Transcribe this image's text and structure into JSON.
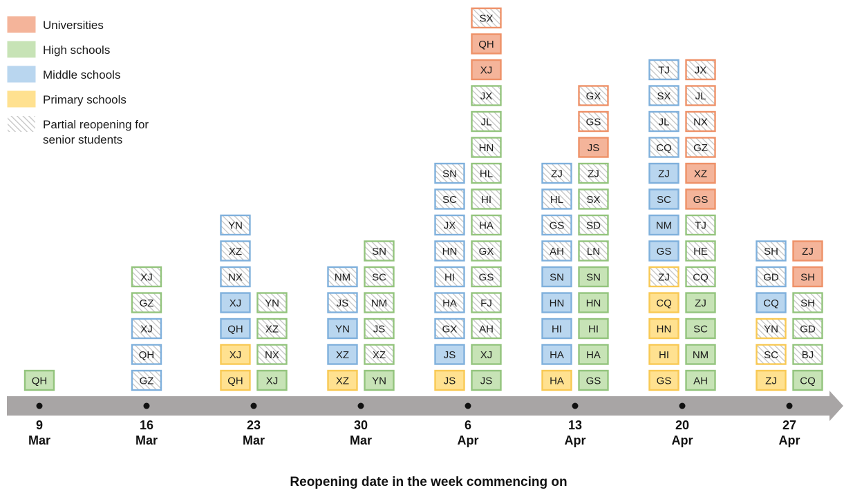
{
  "chart_data": {
    "type": "stacked-blocks",
    "xlabel": "Reopening date in the week commencing on",
    "colors": {
      "U": {
        "fill": "#f4b49a",
        "stroke": "#ee9168"
      },
      "H": {
        "fill": "#c7e3b6",
        "stroke": "#93c47d"
      },
      "M": {
        "fill": "#b9d6ef",
        "stroke": "#7fb0dc"
      },
      "P": {
        "fill": "#ffe190",
        "stroke": "#f8c954"
      },
      "partial": {
        "fill": "#ffffff",
        "stroke": "#bdbdbd",
        "hatch": "#c4c4c4"
      },
      "axis": "#a8a5a5"
    },
    "legend": [
      {
        "key": "U",
        "label": "Universities"
      },
      {
        "key": "H",
        "label": "High schools"
      },
      {
        "key": "M",
        "label": "Middle schools"
      },
      {
        "key": "P",
        "label": "Primary schools"
      },
      {
        "key": "partial",
        "label1": "Partial reopening for",
        "label2": "senior students"
      }
    ],
    "weeks": [
      {
        "day": "9",
        "month": "Mar",
        "columns": [
          [
            {
              "code": "QH",
              "type": "H",
              "partial": false
            }
          ]
        ]
      },
      {
        "day": "16",
        "month": "Mar",
        "columns": [
          [
            {
              "code": "GZ",
              "type": "M",
              "partial": true
            },
            {
              "code": "QH",
              "type": "M",
              "partial": true
            },
            {
              "code": "XJ",
              "type": "M",
              "partial": true
            },
            {
              "code": "GZ",
              "type": "H",
              "partial": true
            },
            {
              "code": "XJ",
              "type": "H",
              "partial": true
            }
          ]
        ]
      },
      {
        "day": "23",
        "month": "Mar",
        "columns": [
          [
            {
              "code": "QH",
              "type": "P",
              "partial": false
            },
            {
              "code": "XJ",
              "type": "P",
              "partial": false
            },
            {
              "code": "QH",
              "type": "M",
              "partial": false
            },
            {
              "code": "XJ",
              "type": "M",
              "partial": false
            },
            {
              "code": "NX",
              "type": "M",
              "partial": true
            },
            {
              "code": "XZ",
              "type": "M",
              "partial": true
            },
            {
              "code": "YN",
              "type": "M",
              "partial": true
            }
          ],
          [
            {
              "code": "XJ",
              "type": "H",
              "partial": false
            },
            {
              "code": "NX",
              "type": "H",
              "partial": true
            },
            {
              "code": "XZ",
              "type": "H",
              "partial": true
            },
            {
              "code": "YN",
              "type": "H",
              "partial": true
            }
          ]
        ]
      },
      {
        "day": "30",
        "month": "Mar",
        "columns": [
          [
            {
              "code": "XZ",
              "type": "P",
              "partial": false
            },
            {
              "code": "XZ",
              "type": "M",
              "partial": false
            },
            {
              "code": "YN",
              "type": "M",
              "partial": false
            },
            {
              "code": "JS",
              "type": "M",
              "partial": true
            },
            {
              "code": "NM",
              "type": "M",
              "partial": true
            }
          ],
          [
            {
              "code": "YN",
              "type": "H",
              "partial": false
            },
            {
              "code": "XZ",
              "type": "H",
              "partial": true
            },
            {
              "code": "JS",
              "type": "H",
              "partial": true
            },
            {
              "code": "NM",
              "type": "H",
              "partial": true
            },
            {
              "code": "SC",
              "type": "H",
              "partial": true
            },
            {
              "code": "SN",
              "type": "H",
              "partial": true
            }
          ]
        ]
      },
      {
        "day": "6",
        "month": "Apr",
        "columns": [
          [
            {
              "code": "JS",
              "type": "P",
              "partial": false
            },
            {
              "code": "JS",
              "type": "M",
              "partial": false
            },
            {
              "code": "GX",
              "type": "M",
              "partial": true
            },
            {
              "code": "HA",
              "type": "M",
              "partial": true
            },
            {
              "code": "HI",
              "type": "M",
              "partial": true
            },
            {
              "code": "HN",
              "type": "M",
              "partial": true
            },
            {
              "code": "JX",
              "type": "M",
              "partial": true
            },
            {
              "code": "SC",
              "type": "M",
              "partial": true
            },
            {
              "code": "SN",
              "type": "M",
              "partial": true
            }
          ],
          [
            {
              "code": "JS",
              "type": "H",
              "partial": false
            },
            {
              "code": "XJ",
              "type": "H",
              "partial": false
            },
            {
              "code": "AH",
              "type": "H",
              "partial": true
            },
            {
              "code": "FJ",
              "type": "H",
              "partial": true
            },
            {
              "code": "GS",
              "type": "H",
              "partial": true
            },
            {
              "code": "GX",
              "type": "H",
              "partial": true
            },
            {
              "code": "HA",
              "type": "H",
              "partial": true
            },
            {
              "code": "HI",
              "type": "H",
              "partial": true
            },
            {
              "code": "HL",
              "type": "H",
              "partial": true
            },
            {
              "code": "HN",
              "type": "H",
              "partial": true
            },
            {
              "code": "JL",
              "type": "H",
              "partial": true
            },
            {
              "code": "JX",
              "type": "H",
              "partial": true
            },
            {
              "code": "XJ",
              "type": "U",
              "partial": false
            },
            {
              "code": "QH",
              "type": "U",
              "partial": false
            },
            {
              "code": "SX",
              "type": "U",
              "partial": true
            }
          ]
        ]
      },
      {
        "day": "13",
        "month": "Apr",
        "columns": [
          [
            {
              "code": "HA",
              "type": "P",
              "partial": false
            },
            {
              "code": "HA",
              "type": "M",
              "partial": false
            },
            {
              "code": "HI",
              "type": "M",
              "partial": false
            },
            {
              "code": "HN",
              "type": "M",
              "partial": false
            },
            {
              "code": "SN",
              "type": "M",
              "partial": false
            },
            {
              "code": "AH",
              "type": "M",
              "partial": true
            },
            {
              "code": "GS",
              "type": "M",
              "partial": true
            },
            {
              "code": "HL",
              "type": "M",
              "partial": true
            },
            {
              "code": "ZJ",
              "type": "M",
              "partial": true
            }
          ],
          [
            {
              "code": "GS",
              "type": "H",
              "partial": false
            },
            {
              "code": "HA",
              "type": "H",
              "partial": false
            },
            {
              "code": "HI",
              "type": "H",
              "partial": false
            },
            {
              "code": "HN",
              "type": "H",
              "partial": false
            },
            {
              "code": "SN",
              "type": "H",
              "partial": false
            },
            {
              "code": "LN",
              "type": "H",
              "partial": true
            },
            {
              "code": "SD",
              "type": "H",
              "partial": true
            },
            {
              "code": "SX",
              "type": "H",
              "partial": true
            },
            {
              "code": "ZJ",
              "type": "H",
              "partial": true
            },
            {
              "code": "JS",
              "type": "U",
              "partial": false
            },
            {
              "code": "GS",
              "type": "U",
              "partial": true
            },
            {
              "code": "GX",
              "type": "U",
              "partial": true
            }
          ]
        ]
      },
      {
        "day": "20",
        "month": "Apr",
        "columns": [
          [
            {
              "code": "GS",
              "type": "P",
              "partial": false
            },
            {
              "code": "HI",
              "type": "P",
              "partial": false
            },
            {
              "code": "HN",
              "type": "P",
              "partial": false
            },
            {
              "code": "CQ",
              "type": "P",
              "partial": false
            },
            {
              "code": "ZJ",
              "type": "P",
              "partial": true
            },
            {
              "code": "GS",
              "type": "M",
              "partial": false
            },
            {
              "code": "NM",
              "type": "M",
              "partial": false
            },
            {
              "code": "SC",
              "type": "M",
              "partial": false
            },
            {
              "code": "ZJ",
              "type": "M",
              "partial": false
            },
            {
              "code": "CQ",
              "type": "M",
              "partial": true
            },
            {
              "code": "JL",
              "type": "M",
              "partial": true
            },
            {
              "code": "SX",
              "type": "M",
              "partial": true
            },
            {
              "code": "TJ",
              "type": "M",
              "partial": true
            }
          ],
          [
            {
              "code": "AH",
              "type": "H",
              "partial": false
            },
            {
              "code": "NM",
              "type": "H",
              "partial": false
            },
            {
              "code": "SC",
              "type": "H",
              "partial": false
            },
            {
              "code": "ZJ",
              "type": "H",
              "partial": false
            },
            {
              "code": "CQ",
              "type": "H",
              "partial": true
            },
            {
              "code": "HE",
              "type": "H",
              "partial": true
            },
            {
              "code": "TJ",
              "type": "H",
              "partial": true
            },
            {
              "code": "GS",
              "type": "U",
              "partial": false
            },
            {
              "code": "XZ",
              "type": "U",
              "partial": false
            },
            {
              "code": "GZ",
              "type": "U",
              "partial": true
            },
            {
              "code": "NX",
              "type": "U",
              "partial": true
            },
            {
              "code": "JL",
              "type": "U",
              "partial": true
            },
            {
              "code": "JX",
              "type": "U",
              "partial": true
            }
          ]
        ]
      },
      {
        "day": "27",
        "month": "Apr",
        "columns": [
          [
            {
              "code": "ZJ",
              "type": "P",
              "partial": false
            },
            {
              "code": "SC",
              "type": "P",
              "partial": true
            },
            {
              "code": "YN",
              "type": "P",
              "partial": true
            },
            {
              "code": "CQ",
              "type": "M",
              "partial": false
            },
            {
              "code": "GD",
              "type": "M",
              "partial": true
            },
            {
              "code": "SH",
              "type": "M",
              "partial": true
            }
          ],
          [
            {
              "code": "CQ",
              "type": "H",
              "partial": false
            },
            {
              "code": "BJ",
              "type": "H",
              "partial": true
            },
            {
              "code": "GD",
              "type": "H",
              "partial": true
            },
            {
              "code": "SH",
              "type": "H",
              "partial": true
            },
            {
              "code": "SH",
              "type": "U",
              "partial": false
            },
            {
              "code": "ZJ",
              "type": "U",
              "partial": false
            }
          ]
        ]
      }
    ]
  }
}
